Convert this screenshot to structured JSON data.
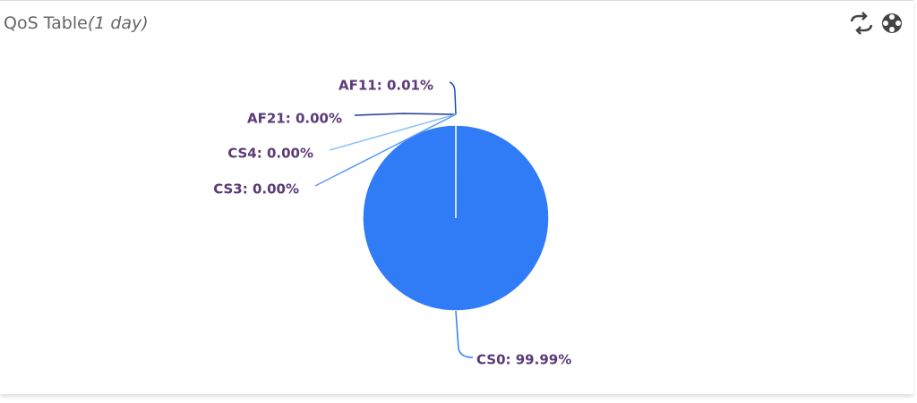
{
  "chart_data": {
    "type": "pie",
    "title": "QoS Table",
    "title_note": "(1 day)",
    "values": [
      0.01,
      0,
      0,
      0,
      99.99
    ],
    "value_labels": [
      "AF11: 0.01%",
      "AF21: 0.00%",
      "CS4: 0.00%",
      "CS3: 0.00%",
      "CS0: 99.99%"
    ],
    "colors": [
      "#1e4bb8",
      "#1f3a93",
      "#8ec0f5",
      "#5a9ef0",
      "#2f7cf6"
    ]
  }
}
